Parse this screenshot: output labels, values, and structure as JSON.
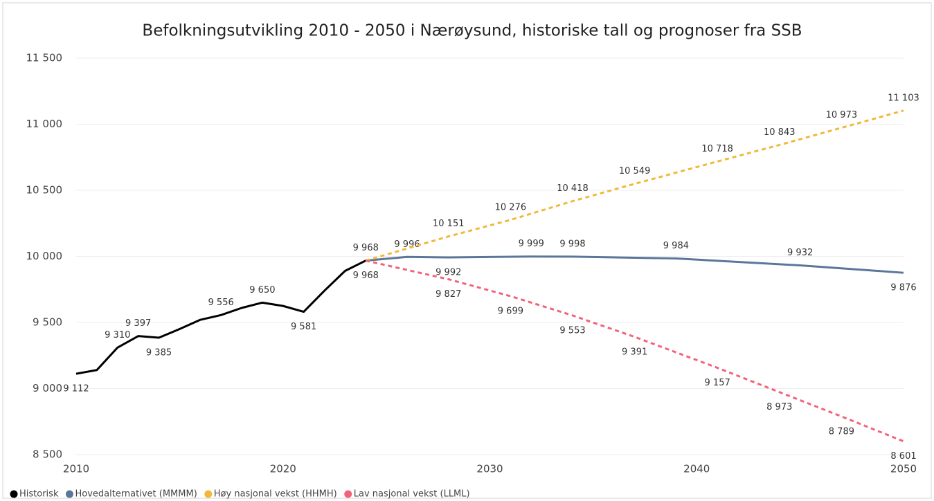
{
  "chart_data": {
    "type": "line",
    "title": "Befolkningsutvikling 2010 - 2050 i Nærøysund, historiske tall og prognoser fra SSB",
    "xlim": [
      2010,
      2050
    ],
    "xticks": [
      2010,
      2020,
      2030,
      2040,
      2050
    ],
    "ylim": [
      8500,
      11500
    ],
    "yticks": [
      {
        "value": 8500,
        "label": "8 500"
      },
      {
        "value": 9000,
        "label": "9 000"
      },
      {
        "value": 9500,
        "label": "9 500"
      },
      {
        "value": 10000,
        "label": "10 000"
      },
      {
        "value": 10500,
        "label": "10 500"
      },
      {
        "value": 11000,
        "label": "11 000"
      },
      {
        "value": 11500,
        "label": "11 500"
      }
    ],
    "grid": true,
    "legend": "bottom-left",
    "series": [
      {
        "name": "Historisk",
        "color": "#000000",
        "dashed": false,
        "x": [
          2010,
          2011,
          2012,
          2013,
          2014,
          2015,
          2016,
          2017,
          2018,
          2019,
          2020,
          2021,
          2022,
          2023,
          2024
        ],
        "values": [
          9112,
          9140,
          9310,
          9397,
          9385,
          9450,
          9520,
          9556,
          9610,
          9650,
          9625,
          9581,
          9740,
          9890,
          9968
        ],
        "value_labels": [
          "9 112",
          null,
          "9 310",
          "9 397",
          "9 385",
          null,
          null,
          "9 556",
          null,
          "9 650",
          null,
          "9 581",
          null,
          null,
          "9 968"
        ]
      },
      {
        "name": "Hovedalternativet (MMMM)",
        "color": "#5a7799",
        "dashed": false,
        "x": [
          2024,
          2026,
          2028,
          2032,
          2034,
          2039,
          2045,
          2050
        ],
        "values": [
          9968,
          9996,
          9992,
          9999,
          9998,
          9984,
          9932,
          9876
        ],
        "value_labels": [
          "9 968",
          "9 996",
          "9 992",
          "9 999",
          "9 998",
          "9 984",
          "9 932",
          "9 876"
        ]
      },
      {
        "name": "Høy nasjonal vekst (HHMH)",
        "color": "#f0b93a",
        "dashed": true,
        "x": [
          2024,
          2028,
          2031,
          2034,
          2037,
          2041,
          2044,
          2047,
          2050
        ],
        "values": [
          9968,
          10151,
          10276,
          10418,
          10549,
          10718,
          10843,
          10973,
          11103
        ],
        "value_labels": [
          null,
          "10 151",
          "10 276",
          "10 418",
          "10 549",
          "10 718",
          "10 843",
          "10 973",
          "11 103"
        ]
      },
      {
        "name": "Lav nasjonal vekst (LLML)",
        "color": "#f2637a",
        "dashed": true,
        "x": [
          2024,
          2028,
          2031,
          2034,
          2037,
          2041,
          2044,
          2047,
          2050
        ],
        "values": [
          9968,
          9827,
          9699,
          9553,
          9391,
          9157,
          8973,
          8789,
          8601
        ],
        "value_labels": [
          null,
          "9 827",
          "9 699",
          "9 553",
          "9 391",
          "9 157",
          "8 973",
          "8 789",
          "8 601"
        ]
      }
    ]
  }
}
